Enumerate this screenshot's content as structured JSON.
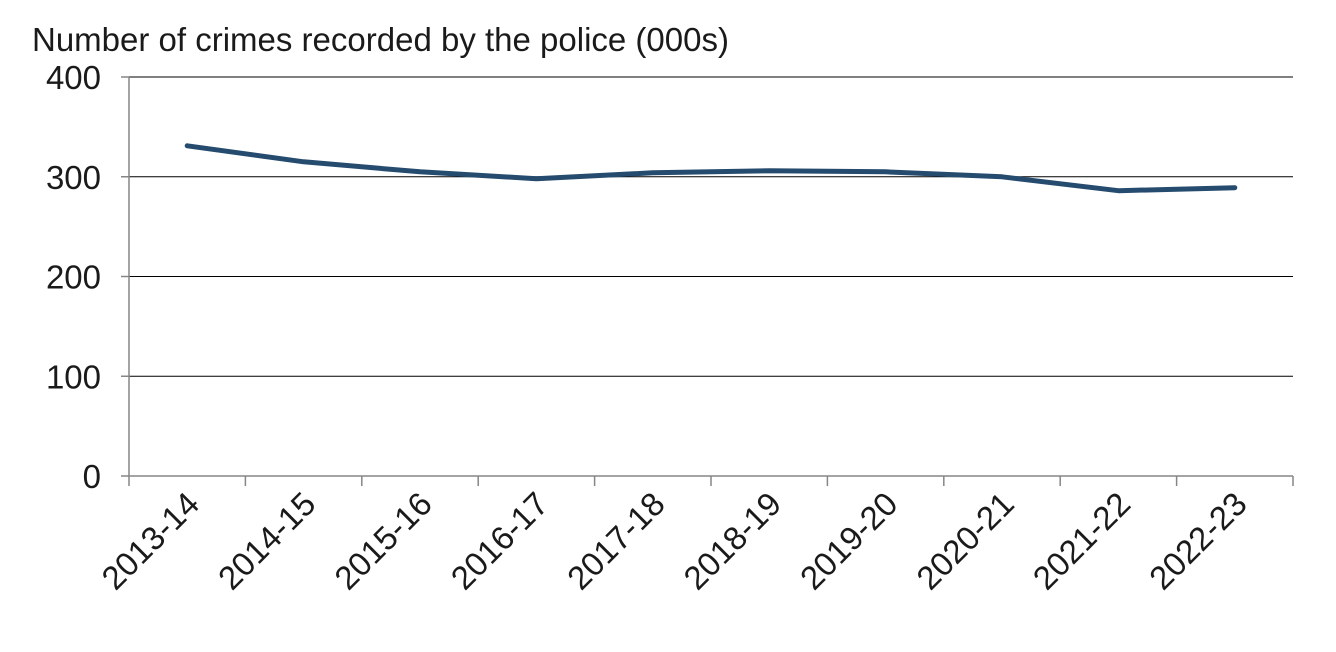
{
  "chart_data": {
    "type": "line",
    "title": "Number of crimes recorded by the police (000s)",
    "xlabel": "",
    "ylabel": "",
    "categories": [
      "2013-14",
      "2014-15",
      "2015-16",
      "2016-17",
      "2017-18",
      "2018-19",
      "2019-20",
      "2020-21",
      "2021-22",
      "2022-23"
    ],
    "series": [
      {
        "values": [
          331,
          315,
          305,
          298,
          304,
          306,
          305,
          300,
          286,
          289
        ]
      }
    ],
    "ylim": [
      0,
      400
    ],
    "yticks": [
      "0",
      "100",
      "200",
      "300",
      "400"
    ],
    "grid": true,
    "legend": "none",
    "line_color": "#254b6e",
    "grid_color": "#000000"
  }
}
